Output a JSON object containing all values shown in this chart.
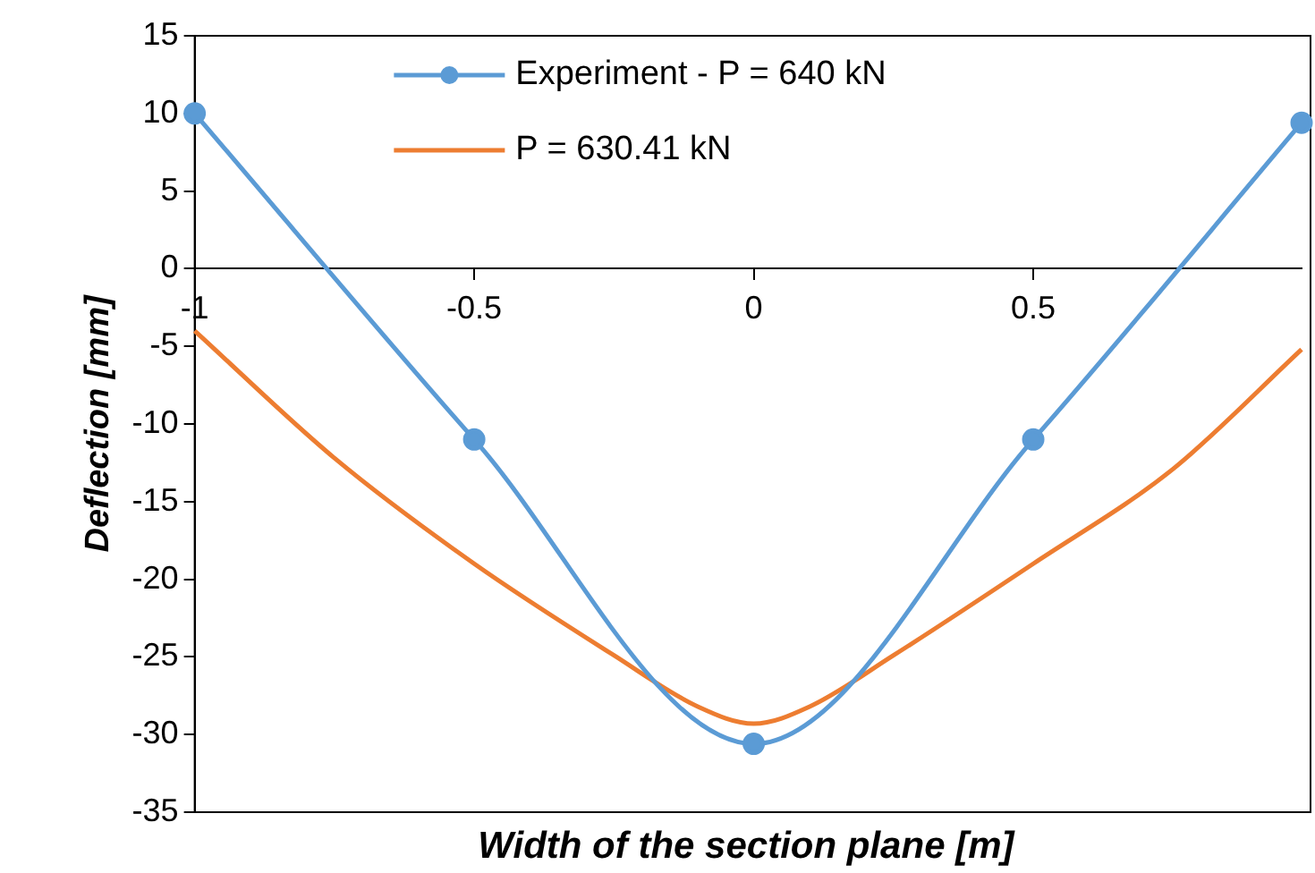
{
  "chart_data": {
    "type": "line",
    "xlabel": "Width of the section plane [m]",
    "ylabel": "Deflection [mm]",
    "xlim": [
      -1,
      0.98
    ],
    "xticks": [
      -1,
      -0.5,
      0,
      0.5
    ],
    "ylim": [
      -35,
      15
    ],
    "yticks": [
      15,
      10,
      5,
      0,
      -5,
      -10,
      -15,
      -20,
      -25,
      -30,
      -35
    ],
    "series": [
      {
        "name": "Experiment - P = 640 kN",
        "color": "#5b9bd5",
        "marker": "circle",
        "x": [
          -1,
          -0.5,
          0,
          0.5,
          0.98
        ],
        "values": [
          10,
          -11,
          -30.6,
          -11,
          9.4
        ]
      },
      {
        "name": "P = 630.41 kN",
        "color": "#ed7d31",
        "marker": "none",
        "x": [
          -1,
          -0.75,
          -0.5,
          -0.25,
          -0.1,
          0,
          0.1,
          0.25,
          0.5,
          0.75,
          0.98
        ],
        "values": [
          -4,
          -12.2,
          -19,
          -24.9,
          -28.2,
          -29.3,
          -28.2,
          -24.9,
          -19,
          -12.9,
          -5.2
        ]
      }
    ],
    "grid": false,
    "legend": "top"
  }
}
